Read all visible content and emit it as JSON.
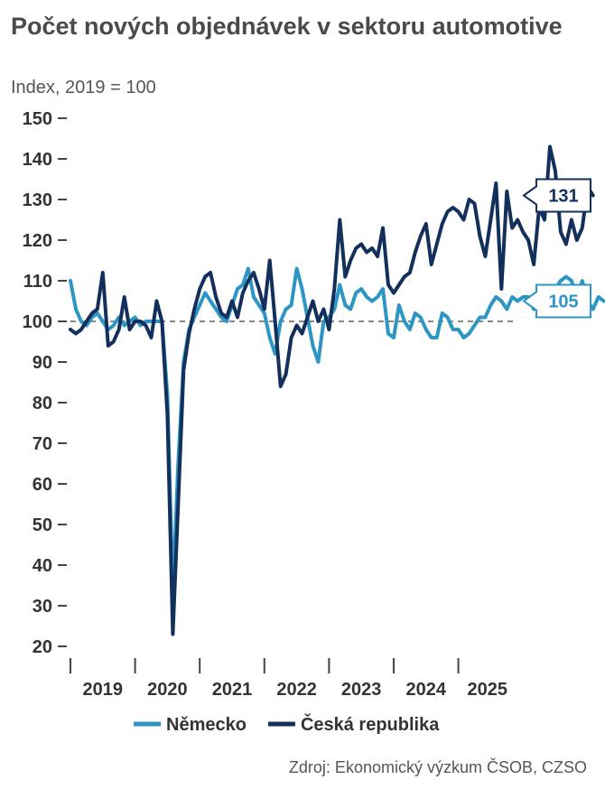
{
  "chart_data": {
    "type": "line",
    "title": "Počet nových objednávek v sektoru automotive",
    "subtitle": "Index, 2019 = 100",
    "source": "Zdroj: Ekonomický výzkum ČSOB, CZSO",
    "ylim": [
      20,
      150
    ],
    "yticks": [
      20,
      30,
      40,
      50,
      60,
      70,
      80,
      90,
      100,
      110,
      120,
      130,
      140,
      150
    ],
    "xlim": [
      2019,
      2025.9
    ],
    "xticks": [
      "2019",
      "2020",
      "2021",
      "2022",
      "2023",
      "2024",
      "2025"
    ],
    "reference_line": 100,
    "legend_position": "bottom",
    "series": [
      {
        "name": "Německo",
        "color": "#2e96c4",
        "end_label": "105",
        "values": [
          110,
          103,
          100,
          99,
          101,
          102,
          100,
          98,
          99,
          101,
          99,
          100,
          101,
          99,
          100,
          100,
          100,
          100,
          82,
          33,
          65,
          90,
          98,
          101,
          104,
          107,
          105,
          103,
          101,
          100,
          104,
          108,
          109,
          113,
          106,
          104,
          102,
          96,
          92,
          100,
          103,
          104,
          113,
          108,
          101,
          94,
          90,
          100,
          101,
          103,
          109,
          104,
          103,
          107,
          108,
          106,
          105,
          106,
          108,
          97,
          96,
          104,
          100,
          98,
          102,
          101,
          98,
          96,
          96,
          102,
          101,
          98,
          98,
          96,
          97,
          99,
          101,
          101,
          104,
          106,
          105,
          103,
          106,
          105,
          106,
          106,
          103,
          104,
          105,
          106,
          108,
          110,
          111,
          110,
          106,
          110,
          105,
          103,
          106,
          105
        ]
      },
      {
        "name": "Česká republika",
        "color": "#132f5c",
        "end_label": "131",
        "values": [
          98,
          97,
          98,
          100,
          102,
          103,
          112,
          94,
          95,
          98,
          106,
          98,
          100,
          100,
          99,
          96,
          105,
          100,
          77,
          23,
          55,
          88,
          97,
          103,
          108,
          111,
          112,
          106,
          102,
          101,
          105,
          101,
          107,
          110,
          112,
          108,
          103,
          115,
          100,
          84,
          87,
          96,
          99,
          97,
          101,
          105,
          100,
          103,
          98,
          108,
          125,
          111,
          115,
          118,
          119,
          117,
          118,
          116,
          123,
          109,
          107,
          109,
          111,
          112,
          117,
          121,
          124,
          114,
          119,
          124,
          127,
          128,
          127,
          125,
          130,
          129,
          121,
          116,
          125,
          134,
          108,
          132,
          123,
          125,
          122,
          120,
          114,
          128,
          125,
          143,
          137,
          122,
          119,
          125,
          120,
          123,
          133,
          131
        ]
      }
    ]
  }
}
